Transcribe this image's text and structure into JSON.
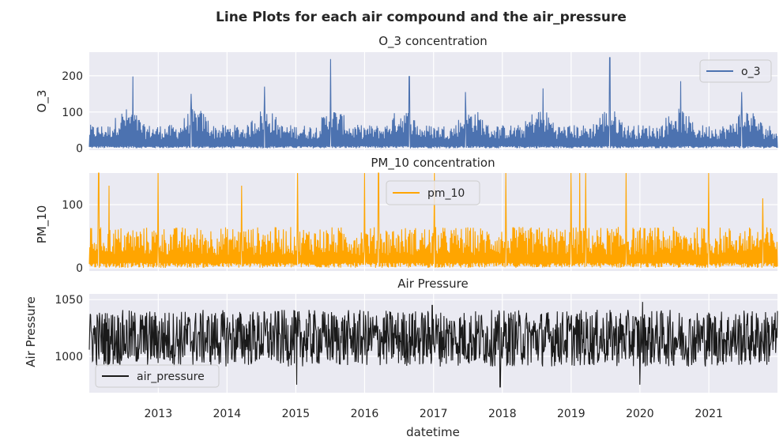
{
  "figure": {
    "suptitle": "Line Plots for each air compound and the air_pressure",
    "xlabel": "datetime",
    "x_ticks": [
      "2013",
      "2014",
      "2015",
      "2016",
      "2017",
      "2018",
      "2019",
      "2020",
      "2021"
    ],
    "x_range": [
      "2012-01-01",
      "2021-12-31"
    ]
  },
  "chart_data": [
    {
      "type": "line",
      "title": "O_3 concentration",
      "ylabel": "O_3",
      "ylim": [
        -5,
        265
      ],
      "yticks": [
        0,
        100,
        200
      ],
      "legend_location": "upper right",
      "series": [
        {
          "name": "o_3",
          "color": "#4c72b0"
        }
      ],
      "seasonal_baseline": 35,
      "seasonal_amplitude": 35,
      "peaks": [
        {
          "x": "2012-08-20",
          "y": 198
        },
        {
          "x": "2013-06-25",
          "y": 150
        },
        {
          "x": "2014-07-20",
          "y": 170
        },
        {
          "x": "2015-07-05",
          "y": 246
        },
        {
          "x": "2016-08-25",
          "y": 198
        },
        {
          "x": "2017-06-20",
          "y": 155
        },
        {
          "x": "2018-08-05",
          "y": 165
        },
        {
          "x": "2019-07-25",
          "y": 250
        },
        {
          "x": "2020-08-05",
          "y": 185
        },
        {
          "x": "2021-06-25",
          "y": 155
        }
      ]
    },
    {
      "type": "line",
      "title": "PM_10 concentration",
      "ylabel": "PM_10",
      "ylim": [
        -5,
        150
      ],
      "yticks": [
        0,
        100
      ],
      "legend_location": "upper center",
      "series": [
        {
          "name": "pm_10",
          "color": "#ffa500"
        }
      ],
      "baseline": 20,
      "peaks": [
        {
          "x": "2012-02-20",
          "y": 150
        },
        {
          "x": "2012-04-15",
          "y": 130
        },
        {
          "x": "2012-12-31",
          "y": 150
        },
        {
          "x": "2014-03-20",
          "y": 130
        },
        {
          "x": "2015-01-10",
          "y": 150
        },
        {
          "x": "2015-12-31",
          "y": 150
        },
        {
          "x": "2016-03-15",
          "y": 150
        },
        {
          "x": "2017-01-05",
          "y": 150
        },
        {
          "x": "2018-01-20",
          "y": 150
        },
        {
          "x": "2018-12-31",
          "y": 150
        },
        {
          "x": "2019-02-15",
          "y": 150
        },
        {
          "x": "2019-03-20",
          "y": 150
        },
        {
          "x": "2019-10-20",
          "y": 150
        },
        {
          "x": "2020-12-31",
          "y": 150
        },
        {
          "x": "2021-10-15",
          "y": 110
        }
      ]
    },
    {
      "type": "line",
      "title": "Air Pressure",
      "ylabel": "Air Pressure",
      "ylim": [
        968,
        1055
      ],
      "yticks": [
        1000,
        1050
      ],
      "legend_location": "lower left",
      "series": [
        {
          "name": "air_pressure",
          "color": "#1a1a1a"
        }
      ],
      "mean": 1016,
      "extremes": [
        {
          "x": "2015-01-05",
          "y": 975
        },
        {
          "x": "2016-12-25",
          "y": 1045
        },
        {
          "x": "2017-12-20",
          "y": 973
        },
        {
          "x": "2019-12-31",
          "y": 975
        },
        {
          "x": "2020-01-15",
          "y": 1048
        }
      ]
    }
  ]
}
